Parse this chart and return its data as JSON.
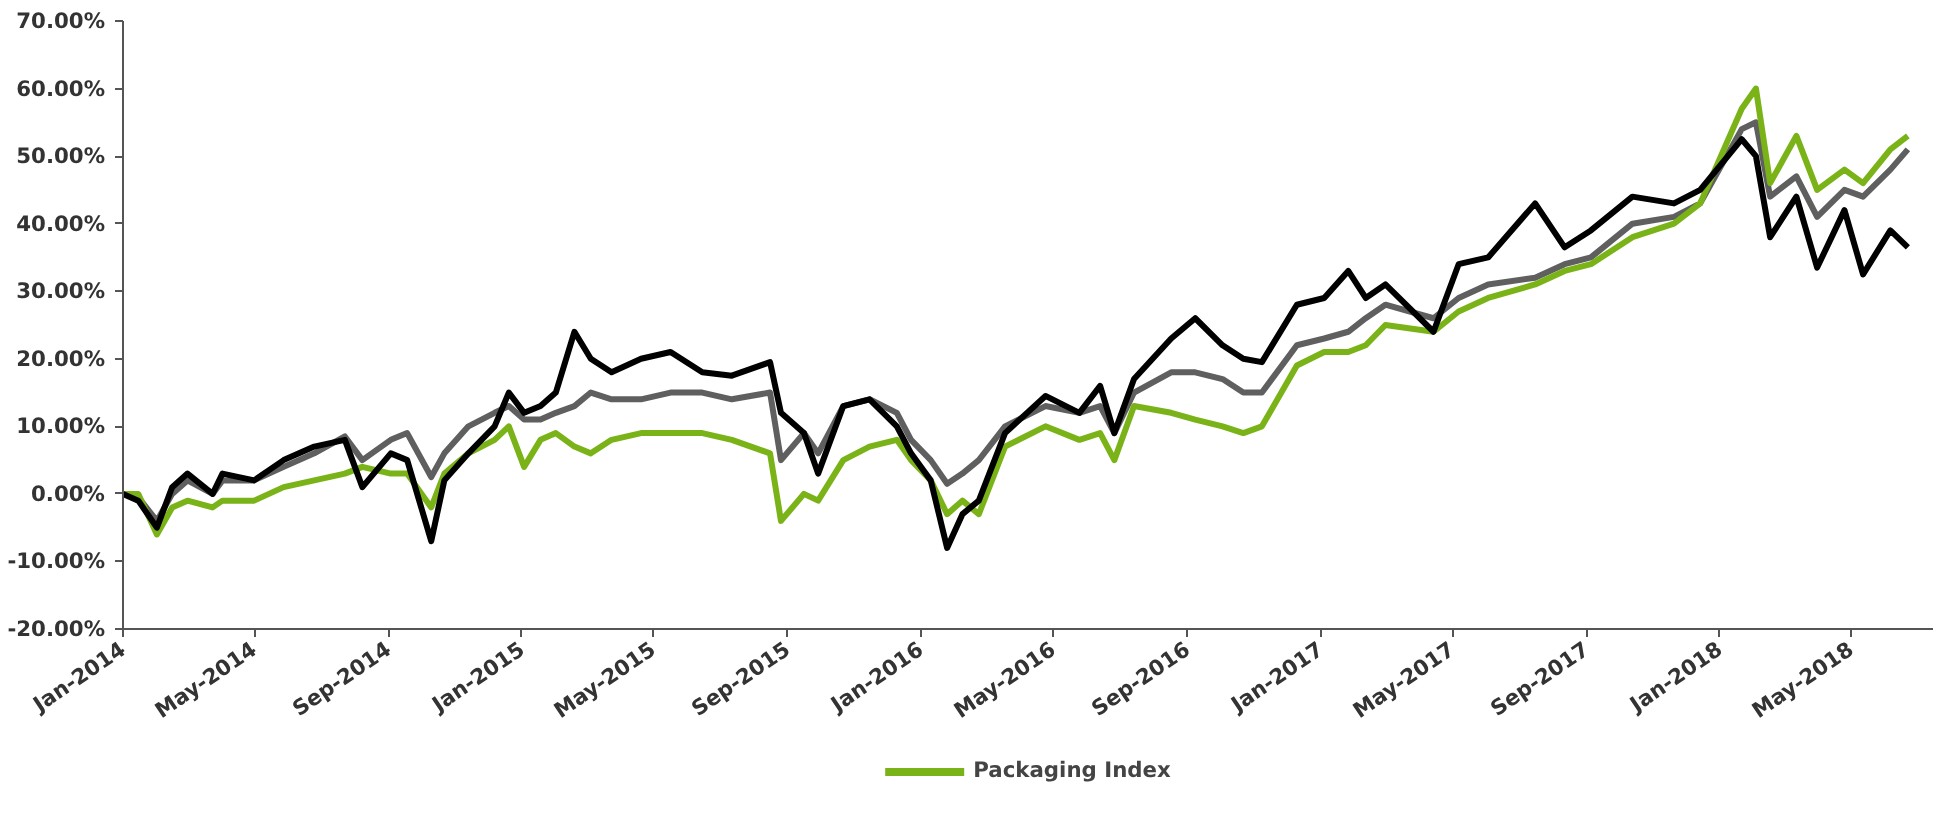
{
  "chart_data": {
    "type": "line",
    "x": [
      "2014-01-01",
      "2014-01-15",
      "2014-02-01",
      "2014-02-15",
      "2014-03-01",
      "2014-03-24",
      "2014-04-02",
      "2014-05-01",
      "2014-05-28",
      "2014-06-25",
      "2014-07-23",
      "2014-08-08",
      "2014-09-03",
      "2014-09-18",
      "2014-10-10",
      "2014-10-22",
      "2014-11-13",
      "2014-12-07",
      "2014-12-20",
      "2015-01-03",
      "2015-01-18",
      "2015-02-01",
      "2015-02-18",
      "2015-03-05",
      "2015-03-24",
      "2015-04-20",
      "2015-05-17",
      "2015-06-15",
      "2015-07-12",
      "2015-08-16",
      "2015-08-26",
      "2015-09-16",
      "2015-09-29",
      "2015-10-22",
      "2015-11-15",
      "2015-12-10",
      "2015-12-23",
      "2016-01-10",
      "2016-01-25",
      "2016-02-08",
      "2016-02-23",
      "2016-03-18",
      "2016-04-24",
      "2016-05-25",
      "2016-06-13",
      "2016-06-26",
      "2016-07-14",
      "2016-08-17",
      "2016-09-08",
      "2016-10-03",
      "2016-10-22",
      "2016-11-08",
      "2016-12-10",
      "2017-01-04",
      "2017-01-26",
      "2017-02-11",
      "2017-03-01",
      "2017-04-14",
      "2017-05-07",
      "2017-06-03",
      "2017-07-16",
      "2017-08-12",
      "2017-09-05",
      "2017-10-13",
      "2017-11-20",
      "2017-12-14",
      "2018-01-21",
      "2018-02-03",
      "2018-02-16",
      "2018-03-12",
      "2018-03-31",
      "2018-04-25",
      "2018-05-12",
      "2018-06-06",
      "2018-06-22"
    ],
    "series": [
      {
        "color": "#5f5f5f",
        "values": [
          0,
          -0.5,
          -4,
          0,
          2,
          0,
          2,
          2,
          4,
          6,
          8.5,
          5,
          8,
          9,
          2.5,
          6,
          10,
          12,
          13,
          11,
          11,
          12,
          13,
          15,
          14,
          14,
          15,
          15,
          14,
          15,
          5,
          9,
          6,
          13,
          14,
          12,
          8,
          5,
          1.5,
          3,
          5,
          10,
          13,
          12,
          13,
          9,
          15,
          18,
          18,
          17,
          15,
          15,
          22,
          23,
          24,
          26,
          28,
          26,
          29,
          31,
          32,
          34,
          35,
          40,
          41,
          43,
          54,
          55,
          44,
          47,
          41,
          45,
          44,
          48,
          51
        ]
      },
      {
        "name": "Packaging Index",
        "color": "#7ab317",
        "values": [
          0,
          0,
          -6,
          -2,
          -1,
          -2,
          -1,
          -1,
          1,
          2,
          3,
          4,
          3,
          3,
          -2,
          3,
          6,
          8,
          10,
          4,
          8,
          9,
          7,
          6,
          8,
          9,
          9,
          9,
          8,
          6,
          -4,
          0,
          -1,
          5,
          7,
          8,
          5,
          2,
          -3,
          -1,
          -3,
          7,
          10,
          8,
          9,
          5,
          13,
          12,
          11,
          10,
          9,
          10,
          19,
          21,
          21,
          22,
          25,
          24,
          27,
          29,
          31,
          33,
          34,
          38,
          40,
          43,
          57,
          60,
          46,
          53,
          45,
          48,
          46,
          51,
          53
        ]
      },
      {
        "color": "#000000",
        "values": [
          0,
          -1,
          -5,
          1,
          3,
          0,
          3,
          2,
          5,
          7,
          8,
          1,
          6,
          5,
          -7,
          2,
          6,
          10,
          15,
          12,
          13,
          15,
          24,
          20,
          18,
          20,
          21,
          18,
          17.5,
          19.5,
          12,
          9,
          3,
          13,
          14,
          10,
          6,
          2,
          -8,
          -3,
          -1,
          9,
          14.5,
          12,
          16,
          9,
          17,
          23,
          26,
          22,
          20,
          19.5,
          28,
          29,
          33,
          29,
          31,
          24,
          34,
          35,
          43,
          36.5,
          39,
          44,
          43,
          45,
          52.5,
          50,
          38,
          44,
          33.5,
          42,
          32.5,
          39,
          36.5
        ]
      }
    ],
    "xlim": [
      "2014-01-01",
      "2018-07-15"
    ],
    "xticks": [
      {
        "value": "2014-01-01",
        "label": "Jan-2014"
      },
      {
        "value": "2014-05-01",
        "label": "May-2014"
      },
      {
        "value": "2014-09-01",
        "label": "Sep-2014"
      },
      {
        "value": "2015-01-01",
        "label": "Jan-2015"
      },
      {
        "value": "2015-05-01",
        "label": "May-2015"
      },
      {
        "value": "2015-09-01",
        "label": "Sep-2015"
      },
      {
        "value": "2016-01-01",
        "label": "Jan-2016"
      },
      {
        "value": "2016-05-01",
        "label": "May-2016"
      },
      {
        "value": "2016-09-01",
        "label": "Sep-2016"
      },
      {
        "value": "2017-01-01",
        "label": "Jan-2017"
      },
      {
        "value": "2017-05-01",
        "label": "May-2017"
      },
      {
        "value": "2017-09-01",
        "label": "Sep-2017"
      },
      {
        "value": "2018-01-01",
        "label": "Jan-2018"
      },
      {
        "value": "2018-05-01",
        "label": "May-2018"
      }
    ],
    "ylim": [
      -20,
      70
    ],
    "yticks": [
      {
        "value": -20,
        "label": "-20.00%"
      },
      {
        "value": -10,
        "label": "-10.00%"
      },
      {
        "value": 0,
        "label": "0.00%"
      },
      {
        "value": 10,
        "label": "10.00%"
      },
      {
        "value": 20,
        "label": "20.00%"
      },
      {
        "value": 30,
        "label": "30.00%"
      },
      {
        "value": 40,
        "label": "40.00%"
      },
      {
        "value": 50,
        "label": "50.00%"
      },
      {
        "value": 60,
        "label": "60.00%"
      },
      {
        "value": 70,
        "label": "70.00%"
      }
    ],
    "grid": false,
    "legend": "bottom",
    "marker": "none",
    "line_style": "solid"
  }
}
